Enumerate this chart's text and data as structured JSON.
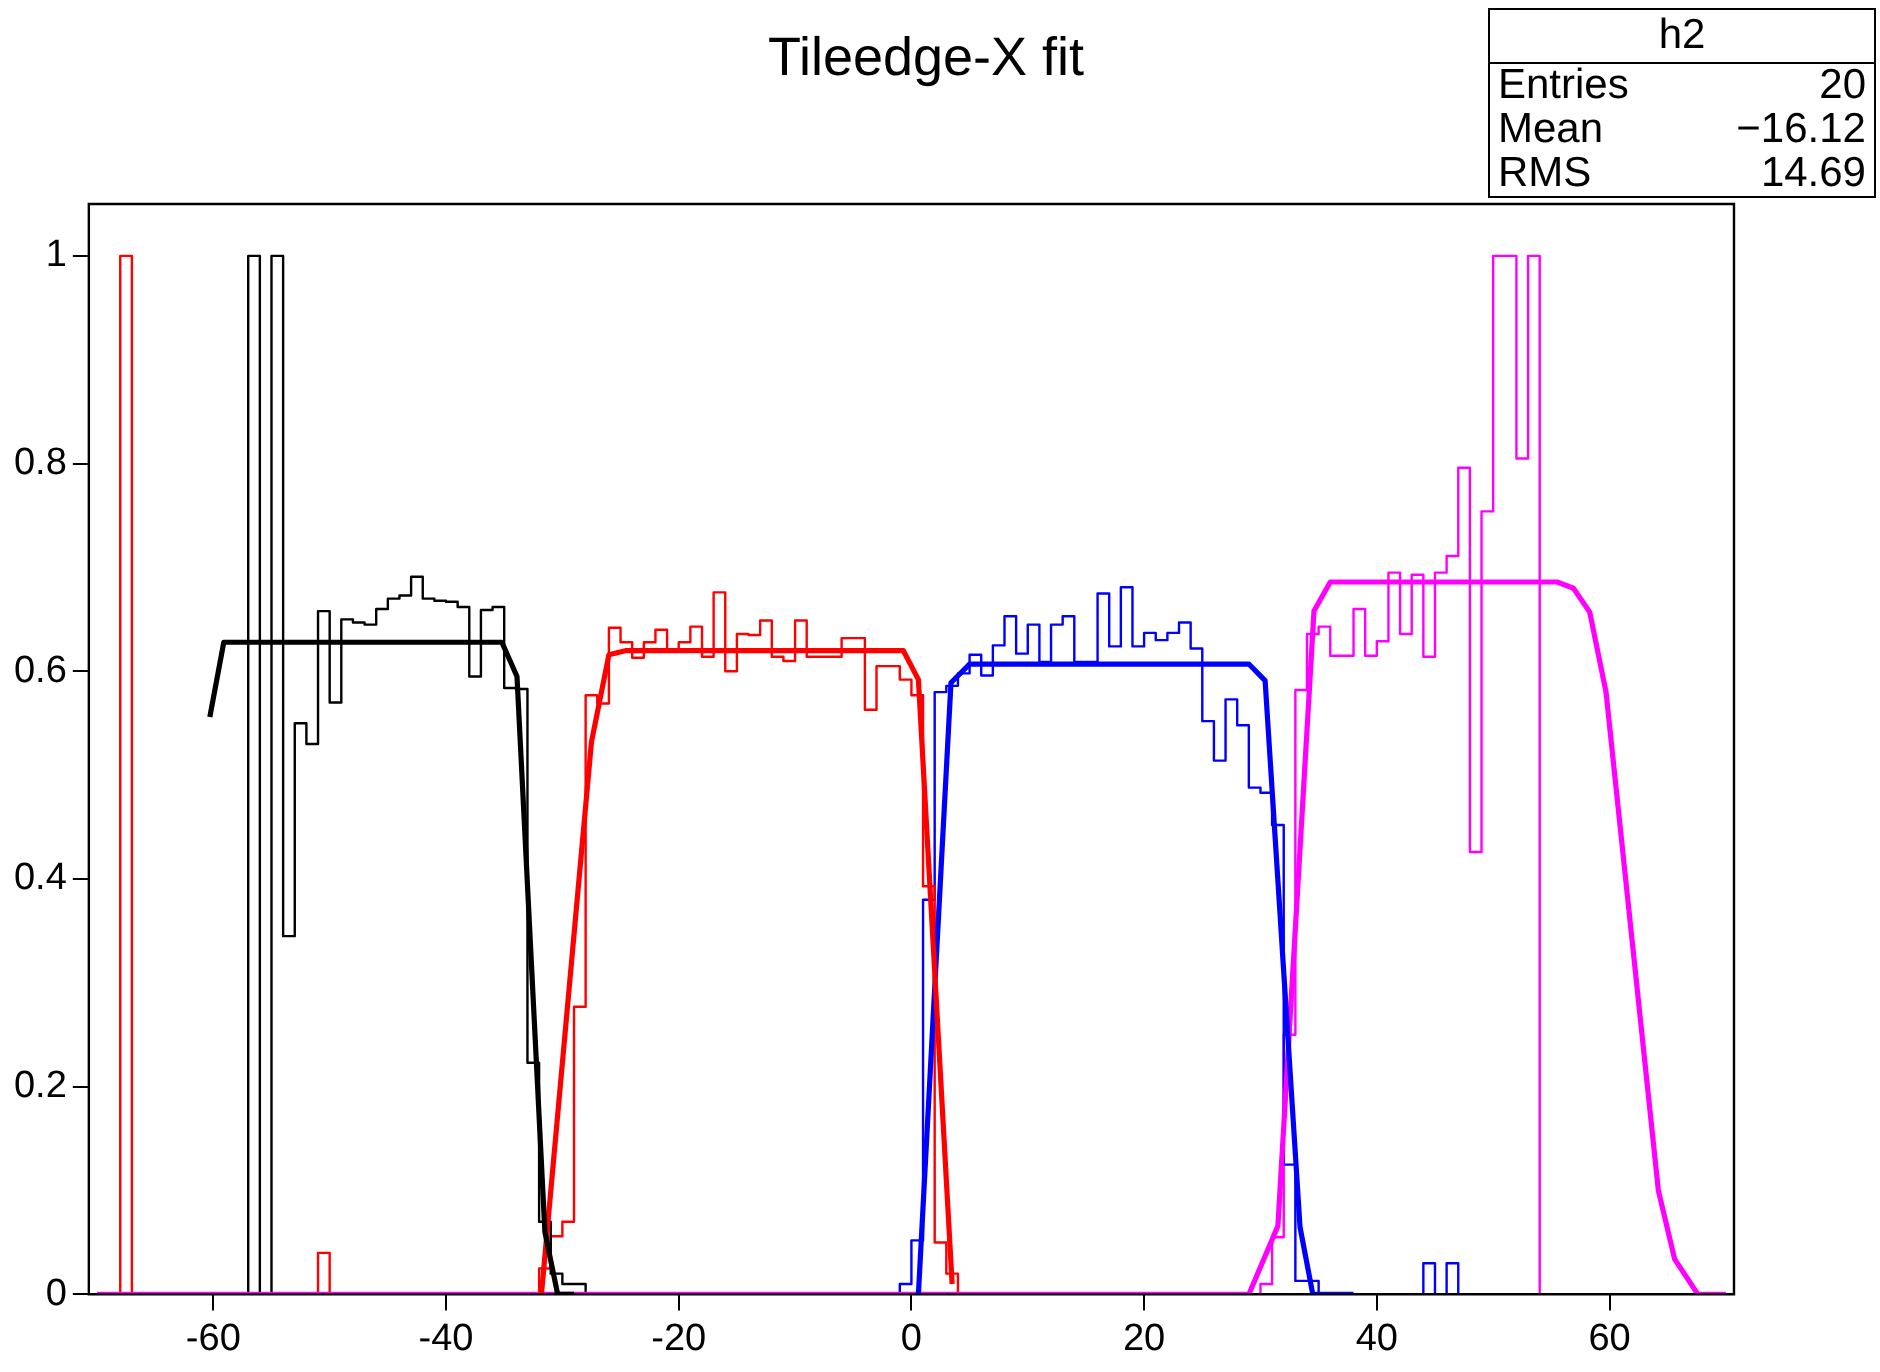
{
  "chart_data": {
    "type": "step",
    "title": "Tileedge-X fit",
    "xlim": [
      -70.7,
      70.7
    ],
    "xticks": [
      -60,
      -40,
      -20,
      0,
      20,
      40,
      60
    ],
    "ylim": [
      0,
      1.05
    ],
    "yticks": [
      0,
      0.2,
      0.4,
      0.6,
      0.8,
      1
    ],
    "grid": false,
    "legend": false,
    "marker": "none",
    "annotations": [
      "h2",
      "Entries",
      "20",
      "Mean",
      "−16.12",
      "RMS",
      "14.69"
    ],
    "series": [
      {
        "color": "#000000",
        "x": [
          -70,
          -57,
          -56,
          -55,
          -54,
          -53,
          -52,
          -51,
          -50,
          -49,
          -48,
          -47,
          -46,
          -45,
          -44,
          -43,
          -42,
          -41,
          -40,
          -39,
          -38,
          -37,
          -36,
          -35,
          -34,
          -33,
          -32,
          -31,
          -30,
          -29,
          -28,
          70
        ],
        "values": [
          0,
          1,
          0,
          1,
          0.345,
          0.55,
          0.53,
          0.658,
          0.57,
          0.65,
          0.647,
          0.645,
          0.66,
          0.67,
          0.673,
          0.691,
          0.67,
          0.668,
          0.667,
          0.662,
          0.595,
          0.659,
          0.662,
          0.584,
          0.583,
          0.223,
          0.07,
          0.02,
          0.01,
          0.01,
          0,
          0
        ]
      },
      {
        "color": "#ff0000",
        "x": [
          -70,
          -68,
          -67,
          -51,
          -50,
          -32,
          -31,
          -30,
          -29,
          -28,
          -27,
          -26,
          -25,
          -24,
          -23,
          -22,
          -21,
          -20,
          -19,
          -18,
          -17,
          -16,
          -15,
          -14,
          -13,
          -12,
          -11,
          -10,
          -9,
          -8,
          -7,
          -6,
          -5,
          -4,
          -3,
          -2,
          -1,
          0,
          1,
          2,
          3,
          4,
          70
        ],
        "values": [
          0,
          1,
          0,
          0.04,
          0,
          0.025,
          0.056,
          0.07,
          0.277,
          0.577,
          0.569,
          0.642,
          0.628,
          0.613,
          0.628,
          0.64,
          0.62,
          0.628,
          0.643,
          0.614,
          0.676,
          0.6,
          0.636,
          0.635,
          0.649,
          0.614,
          0.61,
          0.649,
          0.614,
          0.614,
          0.614,
          0.632,
          0.632,
          0.563,
          0.605,
          0.605,
          0.592,
          0.577,
          0.393,
          0.05,
          0.02,
          0,
          0
        ]
      },
      {
        "color": "#0000ff",
        "x": [
          -70,
          -1,
          0,
          1,
          2,
          3,
          4,
          5,
          6,
          7,
          8,
          9,
          10,
          11,
          12,
          13,
          14,
          15,
          16,
          17,
          18,
          19,
          20,
          21,
          22,
          23,
          24,
          25,
          26,
          27,
          28,
          29,
          30,
          31,
          32,
          33,
          34,
          35,
          44,
          45,
          46,
          47,
          70
        ],
        "values": [
          0,
          0.01,
          0.052,
          0.38,
          0.58,
          0.586,
          0.598,
          0.616,
          0.596,
          0.625,
          0.653,
          0.617,
          0.645,
          0.609,
          0.645,
          0.653,
          0.609,
          0.609,
          0.675,
          0.624,
          0.681,
          0.624,
          0.637,
          0.63,
          0.637,
          0.647,
          0.622,
          0.552,
          0.514,
          0.573,
          0.548,
          0.488,
          0.483,
          0.452,
          0.125,
          0.013,
          0.013,
          0,
          0.03,
          0,
          0.03,
          0,
          0
        ]
      },
      {
        "color": "#ff00ff",
        "x": [
          -70,
          30,
          31,
          32,
          33,
          34,
          35,
          36,
          37,
          38,
          39,
          40,
          41,
          42,
          43,
          44,
          45,
          46,
          47,
          48,
          49,
          50,
          51,
          52,
          53,
          54,
          70
        ],
        "values": [
          0,
          0.01,
          0.055,
          0.25,
          0.582,
          0.636,
          0.643,
          0.615,
          0.615,
          0.66,
          0.615,
          0.629,
          0.695,
          0.636,
          0.693,
          0.614,
          0.695,
          0.711,
          0.796,
          0.426,
          0.754,
          1,
          1,
          0.805,
          1,
          0,
          0
        ]
      },
      {
        "type": "line",
        "color": "#000000",
        "x": [
          -60.3,
          -59.1,
          -35.2,
          -33.9,
          -31.5,
          -30.4,
          -29
        ],
        "values": [
          0.556,
          0.628,
          0.628,
          0.595,
          0.06,
          0,
          0
        ]
      },
      {
        "type": "line",
        "color": "#ff0000",
        "x": [
          -31.8,
          -27.5,
          -26,
          -24.5,
          -0.7,
          0.6,
          3.5
        ],
        "values": [
          0,
          0.532,
          0.616,
          0.62,
          0.62,
          0.592,
          0.01
        ]
      },
      {
        "type": "line",
        "color": "#0000ff",
        "x": [
          0.6,
          3.4,
          5,
          29,
          30.4,
          33.4,
          34.5,
          38
        ],
        "values": [
          0,
          0.589,
          0.607,
          0.607,
          0.591,
          0.065,
          0,
          0
        ]
      },
      {
        "type": "line",
        "color": "#ff00ff",
        "x": [
          -70,
          29,
          31.5,
          34.6,
          36,
          55.5,
          56.9,
          58.3,
          59.7,
          64.2,
          65.6,
          67.6,
          70
        ],
        "values": [
          0,
          0,
          0.066,
          0.658,
          0.686,
          0.686,
          0.68,
          0.657,
          0.58,
          0.1,
          0.034,
          0,
          0
        ]
      }
    ]
  }
}
